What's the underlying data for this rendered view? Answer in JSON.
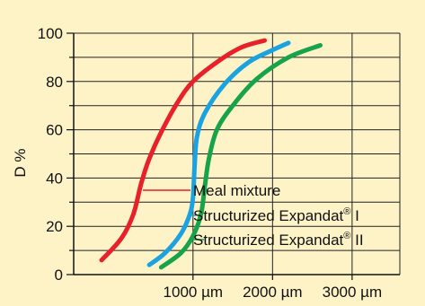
{
  "chart_data": {
    "type": "line",
    "title": "",
    "ylabel": "D %",
    "xlabel": "",
    "xlim": [
      -500,
      3600
    ],
    "ylim": [
      0,
      100
    ],
    "x_ticks": [
      {
        "value": 1000,
        "label": "1000 µm"
      },
      {
        "value": 2000,
        "label": "2000 µm"
      },
      {
        "value": 3000,
        "label": "3000 µm"
      }
    ],
    "y_ticks": [
      0,
      20,
      40,
      60,
      80,
      100
    ],
    "grid": true,
    "series": [
      {
        "name": "Meal mixture",
        "name_sup": "",
        "name_suffix": "",
        "color": "#e8202a",
        "points": [
          [
            -150,
            6
          ],
          [
            100,
            15
          ],
          [
            250,
            25
          ],
          [
            350,
            38
          ],
          [
            450,
            48
          ],
          [
            600,
            59
          ],
          [
            800,
            71
          ],
          [
            1000,
            80
          ],
          [
            1300,
            88
          ],
          [
            1600,
            94
          ],
          [
            1900,
            97
          ]
        ]
      },
      {
        "name": "Structurized Expandat",
        "name_sup": "®",
        "name_suffix": " I",
        "color": "#1aa3e0",
        "points": [
          [
            450,
            4
          ],
          [
            650,
            9
          ],
          [
            850,
            17
          ],
          [
            960,
            25
          ],
          [
            1000,
            32
          ],
          [
            1020,
            45
          ],
          [
            1050,
            57
          ],
          [
            1150,
            67
          ],
          [
            1400,
            79
          ],
          [
            1700,
            88
          ],
          [
            2000,
            93
          ],
          [
            2200,
            96
          ]
        ]
      },
      {
        "name": "Structurized Expandat",
        "name_sup": "®",
        "name_suffix": " II",
        "color": "#17a34a",
        "points": [
          [
            600,
            3
          ],
          [
            850,
            9
          ],
          [
            1000,
            16
          ],
          [
            1100,
            25
          ],
          [
            1150,
            37
          ],
          [
            1200,
            48
          ],
          [
            1300,
            60
          ],
          [
            1500,
            70
          ],
          [
            1800,
            81
          ],
          [
            2200,
            90
          ],
          [
            2600,
            95
          ]
        ]
      }
    ]
  }
}
